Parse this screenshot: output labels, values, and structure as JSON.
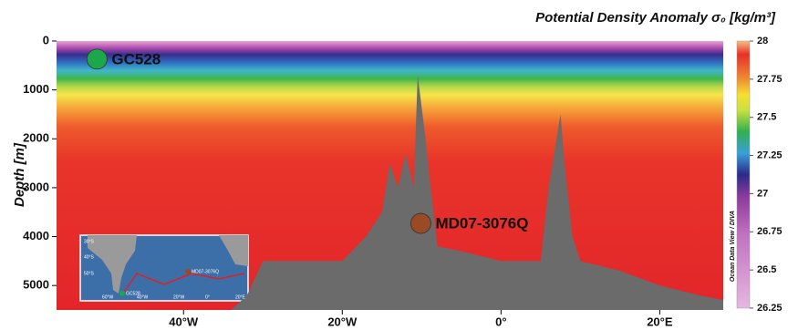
{
  "chart_data": {
    "type": "section",
    "title": "Potential Density Anomaly σ₀ [kg/m³]",
    "ylabel": "Depth [m]",
    "xlim": [
      -56,
      28
    ],
    "ylim": [
      5500,
      0
    ],
    "xticks": [
      {
        "value": -40,
        "label": "40°W"
      },
      {
        "value": -20,
        "label": "20°W"
      },
      {
        "value": 0,
        "label": "0°"
      },
      {
        "value": 20,
        "label": "20°E"
      }
    ],
    "yticks": [
      0,
      1000,
      2000,
      3000,
      4000,
      5000
    ],
    "bathymetry": {
      "color": "#6b6b6b",
      "x": [
        -56,
        -34,
        -32,
        -30,
        -25,
        -20,
        -17,
        -15,
        -14,
        -13,
        -12,
        -11,
        -10.5,
        -9.5,
        -9,
        -8,
        -5,
        0,
        5,
        6,
        7,
        7.5,
        8,
        9,
        10,
        15,
        20,
        25,
        28
      ],
      "depth": [
        5500,
        5500,
        5200,
        4500,
        4500,
        4500,
        4000,
        3500,
        2500,
        3000,
        2300,
        3000,
        700,
        2000,
        2800,
        4200,
        4300,
        4500,
        4500,
        3000,
        2000,
        1500,
        2500,
        4000,
        4500,
        4700,
        5000,
        5200,
        5300
      ]
    },
    "sites": [
      {
        "name": "GC528",
        "lon": -50.9,
        "depth": 370,
        "color": "#1aa84a"
      },
      {
        "name": "MD07-3076Q",
        "lon": -10.1,
        "depth": 3730,
        "color": "#9a4a25"
      }
    ],
    "colorbar": {
      "label": "Ocean Data View / DIVA",
      "lim": [
        26.25,
        28
      ],
      "ticks": [
        26.25,
        26.5,
        26.75,
        27,
        27.25,
        27.5,
        27.75,
        28
      ]
    },
    "inset": {
      "labels": [
        "30°S",
        "40°S",
        "50°S",
        "60°W",
        "40°W",
        "20°W",
        "0°",
        "20°E"
      ],
      "sites": [
        "GC528",
        "MD07-3076Q"
      ]
    }
  }
}
